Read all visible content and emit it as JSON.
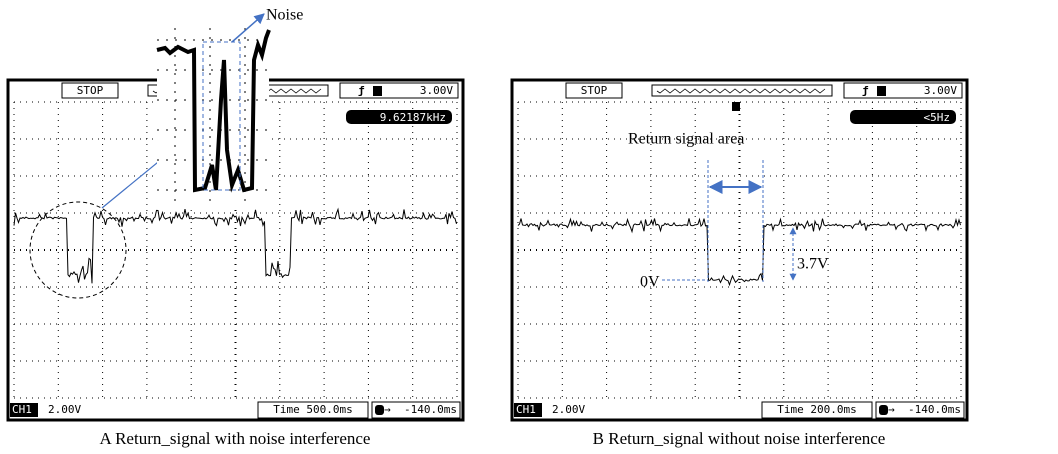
{
  "panels": [
    {
      "status": "STOP",
      "trigger_level": "3.00V",
      "frequency": "9.62187kHz",
      "channel": "CH1",
      "volts_per_div": "2.00V",
      "time_base": "Time 500.0ms",
      "trigger_offset": "-140.0ms",
      "caption": "A Return_signal with noise interference"
    },
    {
      "status": "STOP",
      "trigger_level": "3.00V",
      "frequency": "<5Hz",
      "channel": "CH1",
      "volts_per_div": "2.00V",
      "time_base": "Time 200.0ms",
      "trigger_offset": "-140.0ms",
      "caption": "B Return_signal without noise interference"
    }
  ],
  "annotations": {
    "noise": "Noise",
    "return_area": "Return signal area",
    "zero": "0V",
    "amplitude": "3.7V"
  }
}
